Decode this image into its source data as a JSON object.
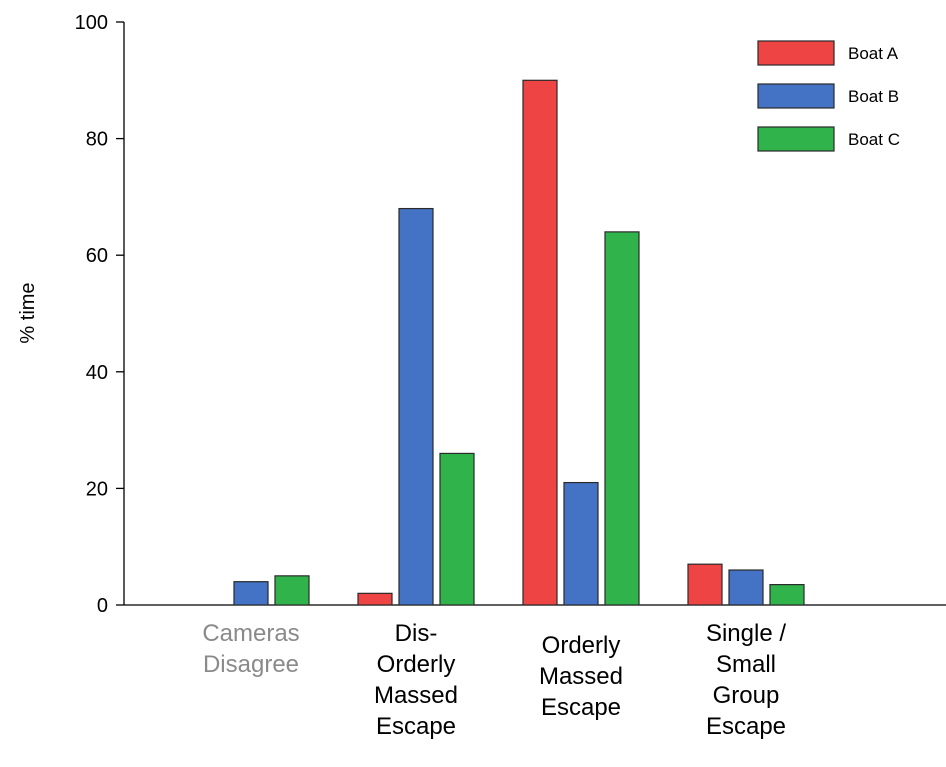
{
  "chart_data": {
    "type": "bar",
    "title": "",
    "xlabel": "",
    "ylabel": "% time",
    "ylim": [
      0,
      100
    ],
    "yticks": [
      0,
      20,
      40,
      60,
      80,
      100
    ],
    "grid": false,
    "legend_position": "top-right",
    "categories": [
      {
        "lines": [
          "Cameras",
          "Disagree"
        ],
        "muted": true
      },
      {
        "lines": [
          "Dis-",
          "Orderly",
          "Massed",
          "Escape"
        ],
        "muted": false
      },
      {
        "lines": [
          "Orderly",
          "Massed",
          "Escape"
        ],
        "muted": false
      },
      {
        "lines": [
          "Single /",
          "Small",
          "Group",
          "Escape"
        ],
        "muted": false
      }
    ],
    "series": [
      {
        "name": "Boat A",
        "color": "#ee4444",
        "values": [
          0,
          2,
          90,
          7
        ]
      },
      {
        "name": "Boat B",
        "color": "#4472c4",
        "values": [
          4,
          68,
          21,
          6
        ]
      },
      {
        "name": "Boat C",
        "color": "#2fb34a",
        "values": [
          5,
          26,
          64,
          3.5
        ]
      }
    ],
    "muted_label_color": "#8a8a8a"
  }
}
